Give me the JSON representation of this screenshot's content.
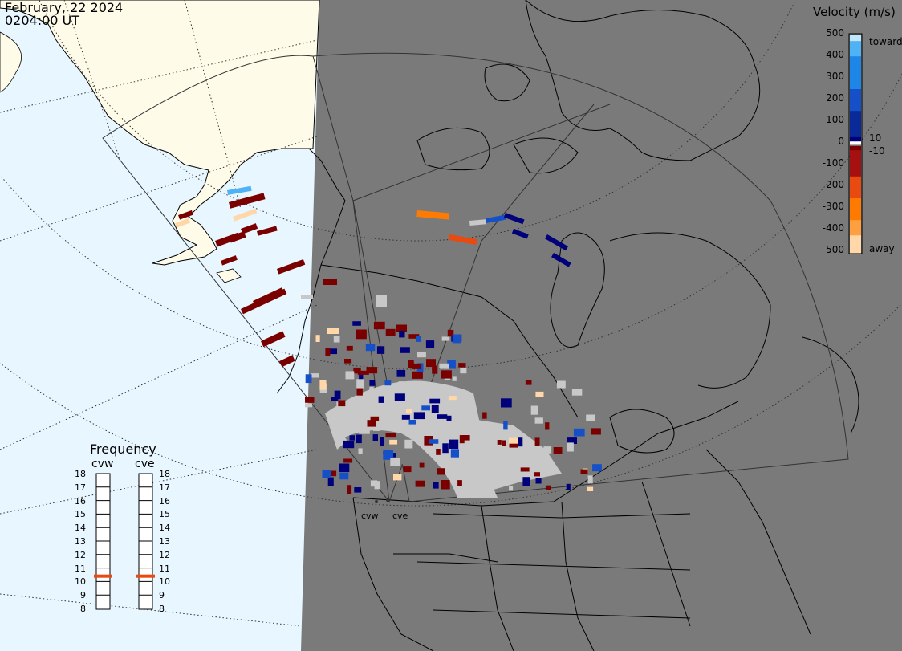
{
  "header": {
    "date": "February, 22 2024",
    "time": "0204:00 UT"
  },
  "legend": {
    "title": "Velocity (m/s)",
    "ticks": [
      "500",
      "400",
      "300",
      "200",
      "100",
      "0",
      "-100",
      "-200",
      "-300",
      "-400",
      "-500"
    ],
    "label_toward": "toward",
    "label_away": "away",
    "small_pos": "10",
    "small_neg": "-10",
    "colors": [
      "#ffd7a8",
      "#ffa040",
      "#ff7a00",
      "#e84a10",
      "#a61010",
      "#7a0000",
      "#8d8d8d",
      "#00007a",
      "#0a2a9a",
      "#1550c8",
      "#1e86e6",
      "#4fb2f5",
      "#bfe8ff"
    ]
  },
  "frequency": {
    "title": "Frequency",
    "radars": [
      "cvw",
      "cve"
    ],
    "scale": [
      "18",
      "17",
      "16",
      "15",
      "14",
      "13",
      "12",
      "11",
      "10",
      "9",
      "8"
    ],
    "current_mhz": [
      11,
      11
    ],
    "marker_color": "#e84a10"
  },
  "sites": [
    "cvw",
    "cve"
  ],
  "map": {
    "ocean_color": "#e8f6ff",
    "alaska_color": "#fefbe8",
    "night_color": "#7a7a7a",
    "scatter_color": "#c8c8c8"
  }
}
